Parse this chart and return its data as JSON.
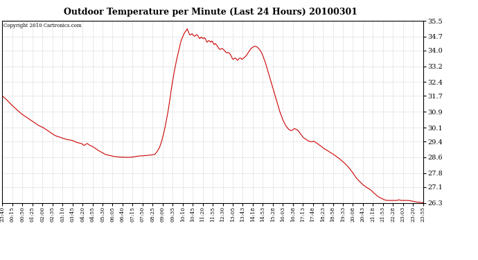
{
  "title": "Outdoor Temperature per Minute (Last 24 Hours) 20100301",
  "copyright": "Copyright 2010 Cartronics.com",
  "line_color": "#cc0000",
  "bg_color": "#ffffff",
  "grid_color": "#bbbbbb",
  "yticks": [
    26.3,
    27.1,
    27.8,
    28.6,
    29.4,
    30.1,
    30.9,
    31.7,
    32.4,
    33.2,
    34.0,
    34.7,
    35.5
  ],
  "ylim": [
    26.3,
    35.5
  ],
  "xtick_labels": [
    "23:40",
    "00:15",
    "00:50",
    "01:25",
    "02:00",
    "02:35",
    "03:10",
    "03:45",
    "04:20",
    "04:55",
    "05:30",
    "06:05",
    "06:40",
    "07:15",
    "07:50",
    "08:25",
    "09:00",
    "09:35",
    "10:10",
    "10:45",
    "11:20",
    "11:55",
    "12:30",
    "13:05",
    "13:43",
    "14:18",
    "14:53",
    "15:28",
    "16:03",
    "16:38",
    "17:13",
    "17:48",
    "18:23",
    "18:58",
    "19:33",
    "20:08",
    "20:43",
    "21:18",
    "21:53",
    "22:28",
    "23:03",
    "23:20",
    "23:55"
  ],
  "xlim": [
    0,
    1440
  ],
  "temperature_curve": [
    [
      0,
      31.7
    ],
    [
      15,
      31.5
    ],
    [
      25,
      31.35
    ],
    [
      35,
      31.2
    ],
    [
      50,
      31.0
    ],
    [
      65,
      30.8
    ],
    [
      80,
      30.65
    ],
    [
      95,
      30.5
    ],
    [
      110,
      30.35
    ],
    [
      125,
      30.2
    ],
    [
      140,
      30.1
    ],
    [
      155,
      29.95
    ],
    [
      165,
      29.85
    ],
    [
      180,
      29.7
    ],
    [
      200,
      29.6
    ],
    [
      220,
      29.5
    ],
    [
      240,
      29.45
    ],
    [
      255,
      29.35
    ],
    [
      270,
      29.3
    ],
    [
      280,
      29.2
    ],
    [
      290,
      29.3
    ],
    [
      300,
      29.2
    ],
    [
      308,
      29.15
    ],
    [
      318,
      29.05
    ],
    [
      328,
      28.95
    ],
    [
      340,
      28.85
    ],
    [
      352,
      28.75
    ],
    [
      365,
      28.7
    ],
    [
      380,
      28.65
    ],
    [
      395,
      28.62
    ],
    [
      410,
      28.61
    ],
    [
      422,
      28.6
    ],
    [
      435,
      28.6
    ],
    [
      448,
      28.62
    ],
    [
      460,
      28.65
    ],
    [
      472,
      28.67
    ],
    [
      485,
      28.68
    ],
    [
      498,
      28.7
    ],
    [
      510,
      28.72
    ],
    [
      522,
      28.75
    ],
    [
      530,
      28.9
    ],
    [
      538,
      29.1
    ],
    [
      545,
      29.4
    ],
    [
      552,
      29.8
    ],
    [
      558,
      30.2
    ],
    [
      563,
      30.6
    ],
    [
      568,
      31.0
    ],
    [
      572,
      31.4
    ],
    [
      576,
      31.8
    ],
    [
      580,
      32.2
    ],
    [
      584,
      32.55
    ],
    [
      588,
      32.9
    ],
    [
      592,
      33.2
    ],
    [
      596,
      33.5
    ],
    [
      600,
      33.75
    ],
    [
      604,
      34.0
    ],
    [
      607,
      34.2
    ],
    [
      610,
      34.4
    ],
    [
      613,
      34.55
    ],
    [
      616,
      34.65
    ],
    [
      619,
      34.75
    ],
    [
      621,
      34.82
    ],
    [
      623,
      34.88
    ],
    [
      625,
      34.93
    ],
    [
      627,
      34.97
    ],
    [
      629,
      35.0
    ],
    [
      631,
      35.05
    ],
    [
      633,
      35.1
    ],
    [
      635,
      35.0
    ],
    [
      637,
      34.93
    ],
    [
      639,
      34.85
    ],
    [
      641,
      34.8
    ],
    [
      643,
      34.78
    ],
    [
      645,
      34.8
    ],
    [
      647,
      34.82
    ],
    [
      649,
      34.85
    ],
    [
      651,
      34.82
    ],
    [
      653,
      34.78
    ],
    [
      655,
      34.75
    ],
    [
      657,
      34.73
    ],
    [
      659,
      34.72
    ],
    [
      661,
      34.75
    ],
    [
      663,
      34.78
    ],
    [
      665,
      34.8
    ],
    [
      667,
      34.78
    ],
    [
      669,
      34.75
    ],
    [
      671,
      34.7
    ],
    [
      673,
      34.65
    ],
    [
      675,
      34.6
    ],
    [
      677,
      34.62
    ],
    [
      679,
      34.65
    ],
    [
      681,
      34.68
    ],
    [
      683,
      34.65
    ],
    [
      685,
      34.62
    ],
    [
      687,
      34.6
    ],
    [
      689,
      34.62
    ],
    [
      691,
      34.65
    ],
    [
      693,
      34.62
    ],
    [
      695,
      34.58
    ],
    [
      697,
      34.52
    ],
    [
      699,
      34.45
    ],
    [
      701,
      34.42
    ],
    [
      703,
      34.45
    ],
    [
      705,
      34.48
    ],
    [
      707,
      34.5
    ],
    [
      709,
      34.48
    ],
    [
      711,
      34.45
    ],
    [
      713,
      34.42
    ],
    [
      715,
      34.45
    ],
    [
      717,
      34.48
    ],
    [
      719,
      34.45
    ],
    [
      721,
      34.4
    ],
    [
      723,
      34.35
    ],
    [
      725,
      34.3
    ],
    [
      727,
      34.32
    ],
    [
      729,
      34.35
    ],
    [
      731,
      34.32
    ],
    [
      733,
      34.28
    ],
    [
      736,
      34.22
    ],
    [
      739,
      34.15
    ],
    [
      742,
      34.08
    ],
    [
      745,
      34.05
    ],
    [
      748,
      34.08
    ],
    [
      751,
      34.1
    ],
    [
      754,
      34.08
    ],
    [
      757,
      34.05
    ],
    [
      760,
      34.0
    ],
    [
      763,
      33.95
    ],
    [
      766,
      33.9
    ],
    [
      769,
      33.88
    ],
    [
      772,
      33.9
    ],
    [
      775,
      33.88
    ],
    [
      778,
      33.85
    ],
    [
      781,
      33.78
    ],
    [
      784,
      33.7
    ],
    [
      787,
      33.6
    ],
    [
      790,
      33.55
    ],
    [
      793,
      33.58
    ],
    [
      796,
      33.62
    ],
    [
      799,
      33.6
    ],
    [
      802,
      33.55
    ],
    [
      805,
      33.5
    ],
    [
      808,
      33.55
    ],
    [
      811,
      33.6
    ],
    [
      814,
      33.62
    ],
    [
      817,
      33.6
    ],
    [
      820,
      33.55
    ],
    [
      823,
      33.58
    ],
    [
      826,
      33.62
    ],
    [
      829,
      33.65
    ],
    [
      832,
      33.7
    ],
    [
      835,
      33.75
    ],
    [
      838,
      33.8
    ],
    [
      841,
      33.88
    ],
    [
      844,
      33.95
    ],
    [
      847,
      34.0
    ],
    [
      850,
      34.08
    ],
    [
      853,
      34.12
    ],
    [
      856,
      34.15
    ],
    [
      859,
      34.18
    ],
    [
      862,
      34.2
    ],
    [
      865,
      34.22
    ],
    [
      868,
      34.2
    ],
    [
      871,
      34.18
    ],
    [
      874,
      34.15
    ],
    [
      877,
      34.1
    ],
    [
      880,
      34.05
    ],
    [
      885,
      33.95
    ],
    [
      890,
      33.8
    ],
    [
      895,
      33.6
    ],
    [
      900,
      33.4
    ],
    [
      905,
      33.15
    ],
    [
      910,
      32.9
    ],
    [
      915,
      32.65
    ],
    [
      920,
      32.4
    ],
    [
      925,
      32.15
    ],
    [
      930,
      31.9
    ],
    [
      935,
      31.65
    ],
    [
      940,
      31.4
    ],
    [
      945,
      31.15
    ],
    [
      950,
      30.9
    ],
    [
      955,
      30.7
    ],
    [
      960,
      30.5
    ],
    [
      965,
      30.35
    ],
    [
      970,
      30.2
    ],
    [
      975,
      30.1
    ],
    [
      980,
      30.02
    ],
    [
      985,
      29.97
    ],
    [
      990,
      29.95
    ],
    [
      995,
      30.0
    ],
    [
      1000,
      30.05
    ],
    [
      1005,
      30.02
    ],
    [
      1010,
      29.98
    ],
    [
      1015,
      29.9
    ],
    [
      1020,
      29.8
    ],
    [
      1025,
      29.7
    ],
    [
      1030,
      29.6
    ],
    [
      1038,
      29.52
    ],
    [
      1045,
      29.45
    ],
    [
      1052,
      29.4
    ],
    [
      1060,
      29.38
    ],
    [
      1065,
      29.42
    ],
    [
      1070,
      29.38
    ],
    [
      1078,
      29.3
    ],
    [
      1085,
      29.22
    ],
    [
      1092,
      29.15
    ],
    [
      1100,
      29.05
    ],
    [
      1108,
      28.98
    ],
    [
      1115,
      28.92
    ],
    [
      1122,
      28.85
    ],
    [
      1130,
      28.78
    ],
    [
      1138,
      28.7
    ],
    [
      1145,
      28.62
    ],
    [
      1152,
      28.55
    ],
    [
      1160,
      28.45
    ],
    [
      1168,
      28.35
    ],
    [
      1175,
      28.25
    ],
    [
      1182,
      28.15
    ],
    [
      1190,
      28.0
    ],
    [
      1198,
      27.85
    ],
    [
      1205,
      27.7
    ],
    [
      1212,
      27.55
    ],
    [
      1220,
      27.42
    ],
    [
      1227,
      27.32
    ],
    [
      1234,
      27.22
    ],
    [
      1240,
      27.15
    ],
    [
      1247,
      27.08
    ],
    [
      1253,
      27.02
    ],
    [
      1258,
      26.98
    ],
    [
      1263,
      26.92
    ],
    [
      1268,
      26.85
    ],
    [
      1273,
      26.78
    ],
    [
      1278,
      26.72
    ],
    [
      1283,
      26.65
    ],
    [
      1290,
      26.58
    ],
    [
      1298,
      26.52
    ],
    [
      1305,
      26.47
    ],
    [
      1312,
      26.43
    ],
    [
      1320,
      26.42
    ],
    [
      1330,
      26.42
    ],
    [
      1340,
      26.42
    ],
    [
      1350,
      26.42
    ],
    [
      1358,
      26.45
    ],
    [
      1365,
      26.42
    ],
    [
      1373,
      26.42
    ],
    [
      1380,
      26.42
    ],
    [
      1390,
      26.42
    ],
    [
      1398,
      26.4
    ],
    [
      1405,
      26.38
    ],
    [
      1412,
      26.36
    ],
    [
      1418,
      26.34
    ],
    [
      1425,
      26.33
    ],
    [
      1432,
      26.32
    ],
    [
      1440,
      26.3
    ]
  ]
}
